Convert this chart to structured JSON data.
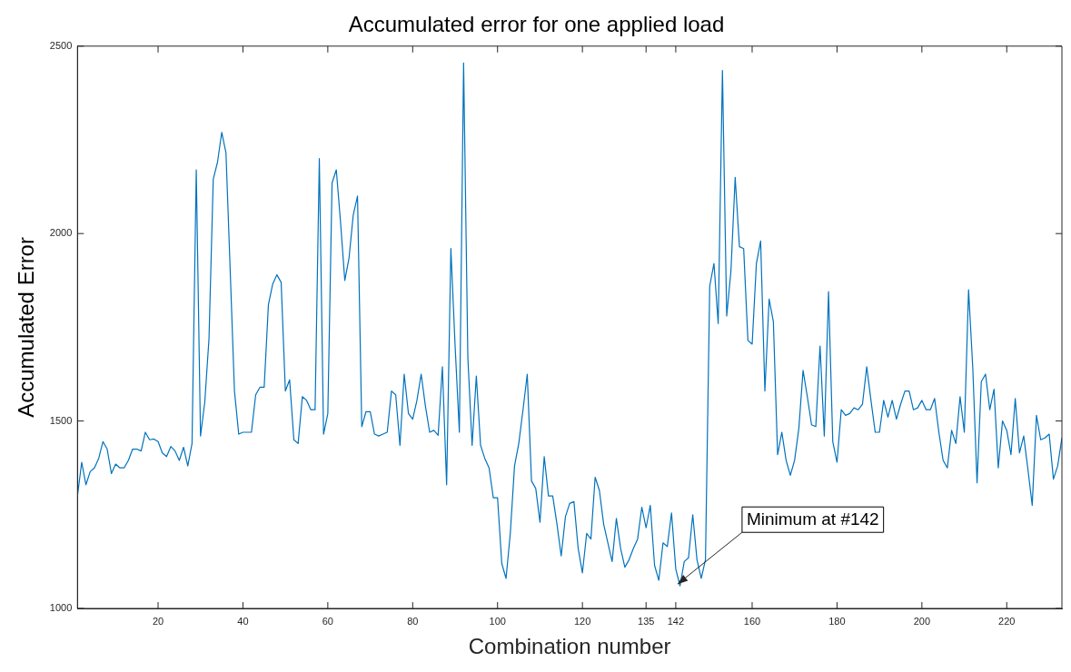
{
  "chart_data": {
    "type": "line",
    "title": "Accumulated error for one applied load",
    "xlabel": "Combination number",
    "ylabel": "Accumulated Error",
    "x": [
      1,
      2,
      3,
      4,
      5,
      6,
      7,
      8,
      9,
      10,
      11,
      12,
      13,
      14,
      15,
      16,
      17,
      18,
      19,
      20,
      21,
      22,
      23,
      24,
      25,
      26,
      27,
      28,
      29,
      30,
      31,
      32,
      33,
      34,
      35,
      36,
      37,
      38,
      39,
      40,
      41,
      42,
      43,
      44,
      45,
      46,
      47,
      48,
      49,
      50,
      51,
      52,
      53,
      54,
      55,
      56,
      57,
      58,
      59,
      60,
      61,
      62,
      63,
      64,
      65,
      66,
      67,
      68,
      69,
      70,
      71,
      72,
      73,
      74,
      75,
      76,
      77,
      78,
      79,
      80,
      81,
      82,
      83,
      84,
      85,
      86,
      87,
      88,
      89,
      90,
      91,
      92,
      93,
      94,
      95,
      96,
      97,
      98,
      99,
      100,
      101,
      102,
      103,
      104,
      105,
      106,
      107,
      108,
      109,
      110,
      111,
      112,
      113,
      114,
      115,
      116,
      117,
      118,
      119,
      120,
      121,
      122,
      123,
      124,
      125,
      126,
      127,
      128,
      129,
      130,
      131,
      132,
      133,
      134,
      135,
      136,
      137,
      138,
      139,
      140,
      141,
      142,
      143,
      144,
      145,
      146,
      147,
      148,
      149,
      150,
      151,
      152,
      153,
      154,
      155,
      156,
      157,
      158,
      159,
      160,
      161,
      162,
      163,
      164,
      165,
      166,
      167,
      168,
      169,
      170,
      171,
      172,
      173,
      174,
      175,
      176,
      177,
      178,
      179,
      180,
      181,
      182,
      183,
      184,
      185,
      186,
      187,
      188,
      189,
      190,
      191,
      192,
      193,
      194,
      195,
      196,
      197,
      198,
      199,
      200,
      201,
      202,
      203,
      204,
      205,
      206,
      207,
      208,
      209,
      210,
      211,
      212,
      213,
      214,
      215,
      216,
      217,
      218,
      219,
      220,
      221,
      222,
      223,
      224,
      225,
      226,
      227,
      228,
      229,
      230,
      231,
      232,
      233
    ],
    "series": [
      {
        "color": "#0072bd",
        "values": [
          1300,
          1390,
          1330,
          1365,
          1375,
          1400,
          1445,
          1425,
          1360,
          1385,
          1375,
          1375,
          1395,
          1425,
          1425,
          1420,
          1470,
          1450,
          1452,
          1445,
          1415,
          1405,
          1432,
          1420,
          1395,
          1430,
          1380,
          1440,
          2170,
          1460,
          1550,
          1720,
          2145,
          2190,
          2270,
          2215,
          1900,
          1580,
          1465,
          1470,
          1470,
          1470,
          1570,
          1590,
          1590,
          1810,
          1865,
          1890,
          1870,
          1580,
          1610,
          1450,
          1440,
          1565,
          1555,
          1530,
          1530,
          2200,
          1465,
          1520,
          2135,
          2170,
          2030,
          1875,
          1935,
          2050,
          2100,
          1485,
          1525,
          1525,
          1465,
          1460,
          1465,
          1470,
          1580,
          1570,
          1435,
          1625,
          1520,
          1505,
          1555,
          1625,
          1540,
          1470,
          1475,
          1462,
          1645,
          1330,
          1960,
          1700,
          1470,
          2455,
          1670,
          1435,
          1620,
          1435,
          1400,
          1375,
          1295,
          1295,
          1120,
          1080,
          1200,
          1380,
          1440,
          1530,
          1625,
          1340,
          1320,
          1230,
          1405,
          1300,
          1300,
          1225,
          1140,
          1245,
          1280,
          1285,
          1160,
          1095,
          1200,
          1185,
          1350,
          1315,
          1225,
          1175,
          1125,
          1240,
          1160,
          1110,
          1130,
          1160,
          1185,
          1270,
          1215,
          1275,
          1115,
          1075,
          1175,
          1165,
          1255,
          1105,
          1060,
          1125,
          1135,
          1250,
          1130,
          1080,
          1130,
          1860,
          1920,
          1760,
          2435,
          1780,
          1900,
          2150,
          1965,
          1960,
          1715,
          1705,
          1920,
          1980,
          1580,
          1825,
          1765,
          1410,
          1470,
          1395,
          1355,
          1395,
          1480,
          1635,
          1565,
          1490,
          1485,
          1700,
          1460,
          1845,
          1445,
          1390,
          1530,
          1515,
          1520,
          1535,
          1530,
          1545,
          1645,
          1555,
          1470,
          1470,
          1555,
          1510,
          1555,
          1505,
          1545,
          1580,
          1580,
          1530,
          1535,
          1555,
          1530,
          1530,
          1560,
          1470,
          1395,
          1375,
          1475,
          1440,
          1565,
          1470,
          1850,
          1640,
          1335,
          1605,
          1625,
          1530,
          1585,
          1375,
          1500,
          1475,
          1410,
          1560,
          1415,
          1460,
          1370,
          1275,
          1515,
          1450,
          1455,
          1465,
          1345,
          1380,
          1455
        ]
      }
    ],
    "xlim": [
      1,
      233
    ],
    "xticks": [
      20,
      40,
      60,
      80,
      100,
      120,
      135,
      142,
      160,
      180,
      200,
      220
    ],
    "ylim": [
      1000,
      2500
    ],
    "yticks": [
      1000,
      1500,
      2000,
      2500
    ],
    "grid": false,
    "legend": false,
    "marker": "none",
    "line_style": "solid",
    "annotations": [
      {
        "text": "Minimum at #142",
        "x": 142,
        "y": 1060
      }
    ]
  }
}
